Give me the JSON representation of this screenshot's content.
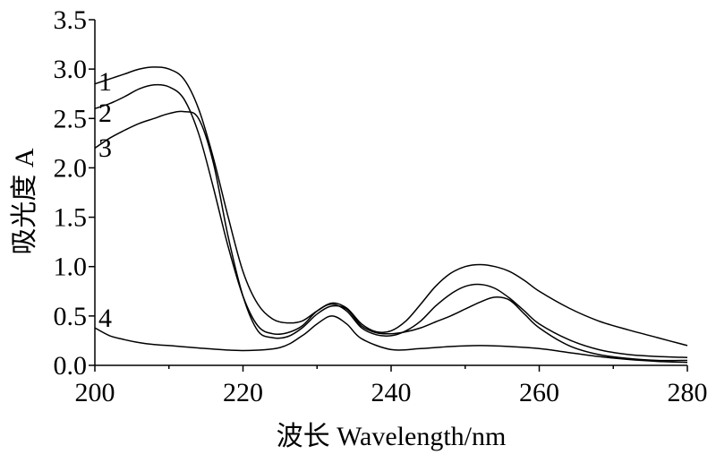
{
  "chart_data": {
    "type": "line",
    "xlabel": "波长 Wavelength/nm",
    "ylabel": "吸光度 A",
    "xlim": [
      200,
      280
    ],
    "ylim": [
      0,
      3.5
    ],
    "x_ticks": [
      "200",
      "220",
      "240",
      "260",
      "280"
    ],
    "y_ticks": [
      "0.0",
      "0.5",
      "1.0",
      "1.5",
      "2.0",
      "2.5",
      "3.0",
      "3.5"
    ],
    "series": [
      {
        "name": "1",
        "x": [
          200,
          202,
          204,
          206,
          208,
          210,
          212,
          214,
          216,
          218,
          220,
          222,
          224,
          226,
          228,
          230,
          232,
          234,
          236,
          238,
          240,
          242,
          244,
          246,
          248,
          250,
          252,
          254,
          256,
          258,
          260,
          264,
          268,
          272,
          276,
          280
        ],
        "y": [
          2.85,
          2.9,
          2.95,
          3.0,
          3.02,
          3.0,
          2.9,
          2.6,
          2.1,
          1.5,
          0.95,
          0.62,
          0.47,
          0.43,
          0.45,
          0.55,
          0.63,
          0.58,
          0.42,
          0.34,
          0.35,
          0.45,
          0.62,
          0.8,
          0.93,
          1.0,
          1.02,
          1.0,
          0.95,
          0.86,
          0.75,
          0.58,
          0.45,
          0.36,
          0.28,
          0.2
        ]
      },
      {
        "name": "2",
        "x": [
          200,
          202,
          204,
          206,
          208,
          210,
          212,
          214,
          216,
          218,
          220,
          222,
          224,
          226,
          228,
          230,
          232,
          234,
          236,
          238,
          240,
          242,
          244,
          246,
          248,
          250,
          252,
          254,
          256,
          258,
          260,
          264,
          268,
          272,
          276,
          280
        ],
        "y": [
          2.6,
          2.65,
          2.72,
          2.8,
          2.84,
          2.82,
          2.7,
          2.35,
          1.8,
          1.2,
          0.7,
          0.4,
          0.32,
          0.33,
          0.4,
          0.55,
          0.62,
          0.55,
          0.38,
          0.31,
          0.3,
          0.35,
          0.45,
          0.6,
          0.72,
          0.8,
          0.82,
          0.78,
          0.68,
          0.55,
          0.42,
          0.26,
          0.16,
          0.11,
          0.09,
          0.08
        ]
      },
      {
        "name": "3",
        "x": [
          200,
          202,
          204,
          206,
          208,
          210,
          212,
          214,
          216,
          218,
          220,
          222,
          224,
          226,
          228,
          230,
          232,
          234,
          236,
          238,
          240,
          242,
          244,
          246,
          248,
          250,
          252,
          254,
          256,
          258,
          260,
          264,
          268,
          272,
          276,
          280
        ],
        "y": [
          2.2,
          2.3,
          2.38,
          2.45,
          2.5,
          2.55,
          2.57,
          2.5,
          2.05,
          1.3,
          0.7,
          0.35,
          0.28,
          0.29,
          0.38,
          0.52,
          0.6,
          0.57,
          0.4,
          0.33,
          0.32,
          0.34,
          0.38,
          0.44,
          0.5,
          0.57,
          0.64,
          0.69,
          0.66,
          0.52,
          0.38,
          0.2,
          0.11,
          0.07,
          0.05,
          0.05
        ]
      },
      {
        "name": "4",
        "x": [
          200,
          202,
          204,
          206,
          208,
          210,
          215,
          220,
          225,
          228,
          230,
          232,
          234,
          236,
          240,
          244,
          248,
          252,
          256,
          260,
          264,
          268,
          272,
          276,
          280
        ],
        "y": [
          0.38,
          0.3,
          0.26,
          0.23,
          0.21,
          0.2,
          0.17,
          0.15,
          0.18,
          0.3,
          0.42,
          0.5,
          0.42,
          0.27,
          0.16,
          0.17,
          0.19,
          0.2,
          0.19,
          0.17,
          0.13,
          0.09,
          0.06,
          0.04,
          0.03
        ]
      }
    ],
    "curve_labels": [
      "1",
      "2",
      "3",
      "4"
    ],
    "grid": false,
    "legend": "none"
  }
}
